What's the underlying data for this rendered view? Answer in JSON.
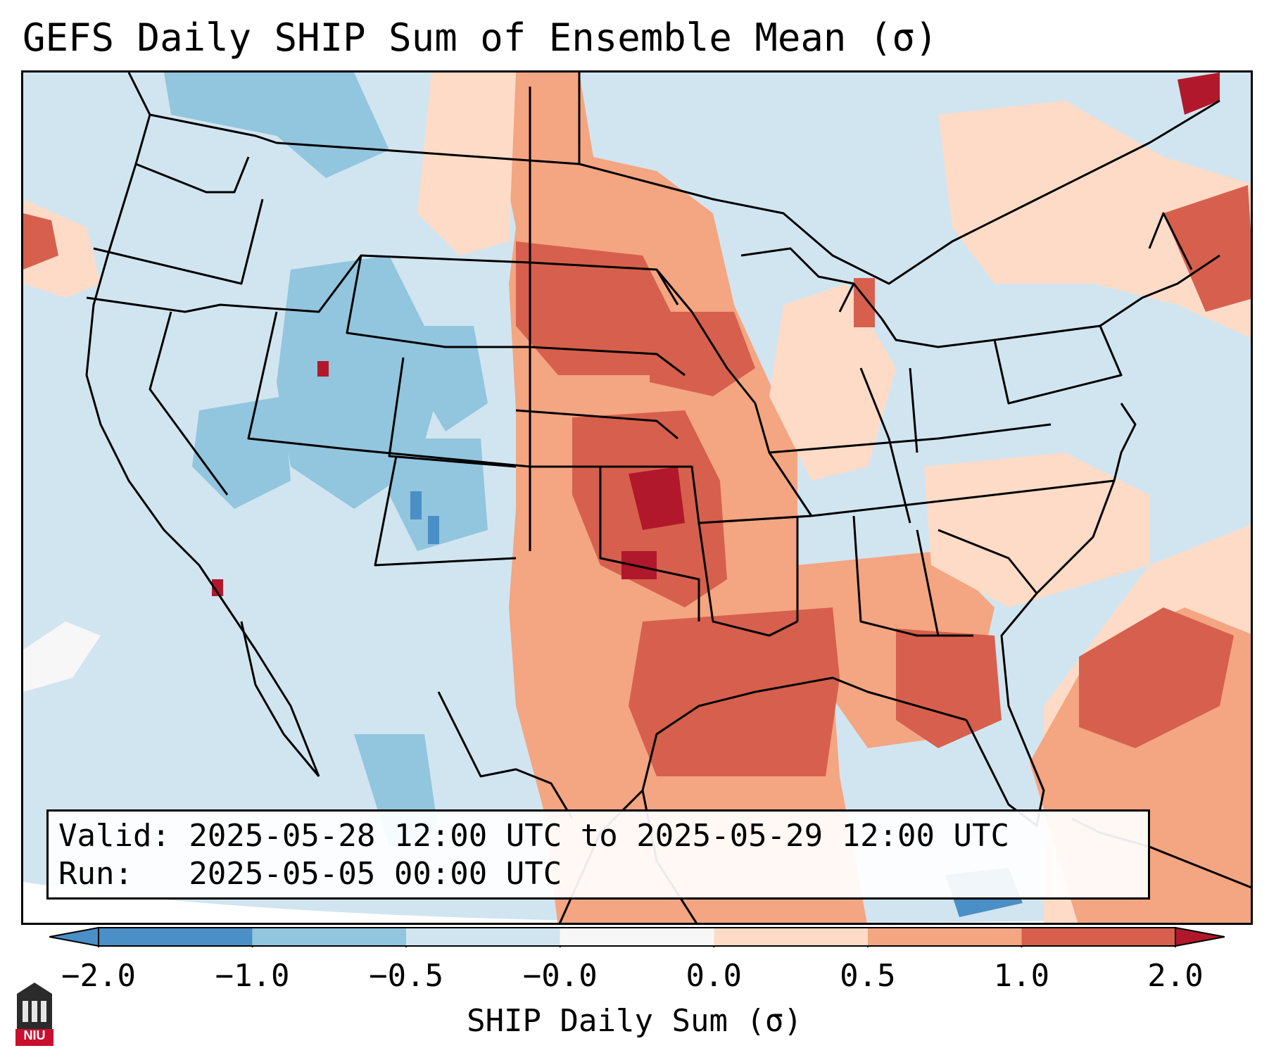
{
  "title": "GEFS Daily SHIP Sum of Ensemble Mean (σ)",
  "info": {
    "valid_line": "Valid: 2025-05-28 12:00 UTC to 2025-05-29 12:00 UTC",
    "run_line": "Run:   2025-05-05 00:00 UTC"
  },
  "colorbar": {
    "label": "SHIP Daily Sum (σ)",
    "ticks": [
      "−2.0",
      "−1.0",
      "−0.5",
      "−0.0",
      "0.0",
      "0.5",
      "1.0",
      "2.0"
    ],
    "colors": [
      "#4a8fc6",
      "#92c5de",
      "#d1e5f0",
      "#f7f7f7",
      "#fddbc7",
      "#f4a582",
      "#d6604d",
      "#b2182b"
    ],
    "extend": "both"
  },
  "logo": {
    "text": "NIU",
    "color": "#c8102e"
  },
  "colors": {
    "ocean_background": "#d1e5f0",
    "state_lines": "#000000"
  }
}
